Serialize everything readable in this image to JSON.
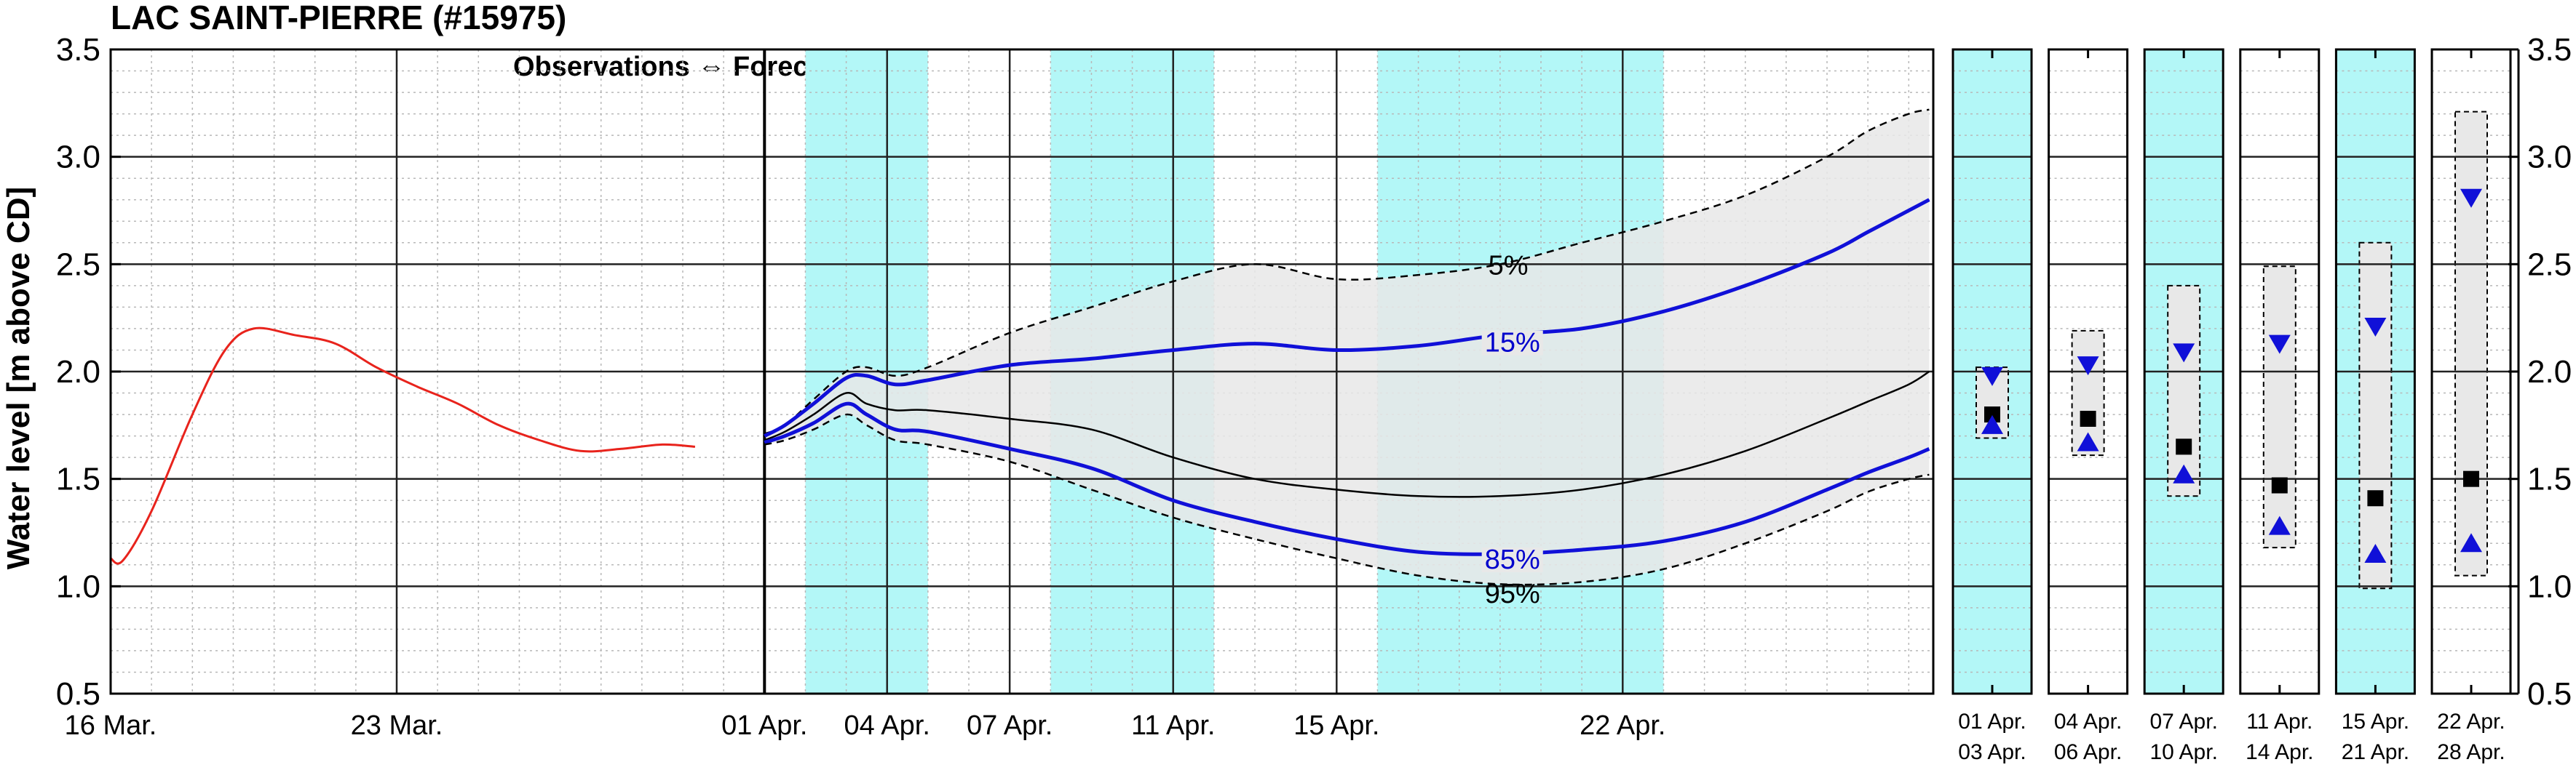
{
  "chart_data": {
    "type": "line",
    "title": "LAC SAINT-PIERRE (#15975)",
    "ylabel": "Water level [m above CD]",
    "ylim": [
      0.5,
      3.5
    ],
    "yticks": [
      "0.5",
      "1.0",
      "1.5",
      "2.0",
      "2.5",
      "3.0",
      "3.5"
    ],
    "grid": true,
    "xticks": [
      {
        "day": 0,
        "label": "16 Mar."
      },
      {
        "day": 7,
        "label": "23 Mar."
      },
      {
        "day": 16,
        "label": "01 Apr."
      },
      {
        "day": 19,
        "label": "04 Apr."
      },
      {
        "day": 22,
        "label": "07 Apr."
      },
      {
        "day": 26,
        "label": "11 Apr."
      },
      {
        "day": 30,
        "label": "15 Apr."
      },
      {
        "day": 37,
        "label": "22 Apr."
      }
    ],
    "annotation": "Observations ⇔ Forecasts",
    "shaded_periods": [
      [
        17,
        20
      ],
      [
        23,
        27
      ],
      [
        31,
        38
      ]
    ],
    "observed": {
      "color": "#e8231c",
      "points": [
        [
          0.0,
          1.13
        ],
        [
          0.3,
          1.12
        ],
        [
          1.0,
          1.35
        ],
        [
          2.0,
          1.8
        ],
        [
          2.8,
          2.1
        ],
        [
          3.5,
          2.2
        ],
        [
          4.5,
          2.17
        ],
        [
          5.5,
          2.13
        ],
        [
          6.5,
          2.02
        ],
        [
          7.5,
          1.93
        ],
        [
          8.5,
          1.85
        ],
        [
          9.5,
          1.75
        ],
        [
          10.5,
          1.68
        ],
        [
          11.5,
          1.63
        ],
        [
          12.5,
          1.64
        ],
        [
          13.5,
          1.66
        ],
        [
          14.3,
          1.65
        ]
      ]
    },
    "forecast_series": [
      {
        "name": "5%",
        "style": "dashed",
        "points": [
          [
            16,
            1.71
          ],
          [
            16.5,
            1.75
          ],
          [
            17.2,
            1.87
          ],
          [
            18.0,
            2.0
          ],
          [
            18.5,
            2.02
          ],
          [
            19.2,
            1.98
          ],
          [
            20,
            2.02
          ],
          [
            22,
            2.18
          ],
          [
            24,
            2.3
          ],
          [
            26,
            2.42
          ],
          [
            28,
            2.5
          ],
          [
            30,
            2.43
          ],
          [
            32,
            2.45
          ],
          [
            34,
            2.5
          ],
          [
            36,
            2.6
          ],
          [
            38,
            2.7
          ],
          [
            40,
            2.82
          ],
          [
            42,
            3.0
          ],
          [
            43,
            3.12
          ],
          [
            44,
            3.2
          ],
          [
            44.5,
            3.22
          ]
        ]
      },
      {
        "name": "15%",
        "style": "blue",
        "points": [
          [
            16,
            1.7
          ],
          [
            16.5,
            1.75
          ],
          [
            17.2,
            1.85
          ],
          [
            18.0,
            1.97
          ],
          [
            18.5,
            1.98
          ],
          [
            19.2,
            1.94
          ],
          [
            20,
            1.96
          ],
          [
            22,
            2.03
          ],
          [
            24,
            2.06
          ],
          [
            26,
            2.1
          ],
          [
            28,
            2.13
          ],
          [
            30,
            2.1
          ],
          [
            32,
            2.12
          ],
          [
            34,
            2.17
          ],
          [
            36,
            2.2
          ],
          [
            38,
            2.28
          ],
          [
            40,
            2.4
          ],
          [
            42,
            2.55
          ],
          [
            43,
            2.65
          ],
          [
            44,
            2.75
          ],
          [
            44.5,
            2.8
          ]
        ]
      },
      {
        "name": "",
        "style": "thin",
        "points": [
          [
            16,
            1.68
          ],
          [
            16.5,
            1.72
          ],
          [
            17.2,
            1.8
          ],
          [
            18.0,
            1.9
          ],
          [
            18.5,
            1.85
          ],
          [
            19.2,
            1.82
          ],
          [
            20,
            1.82
          ],
          [
            22,
            1.78
          ],
          [
            24,
            1.73
          ],
          [
            26,
            1.6
          ],
          [
            28,
            1.5
          ],
          [
            30,
            1.45
          ],
          [
            32,
            1.42
          ],
          [
            34,
            1.42
          ],
          [
            36,
            1.45
          ],
          [
            38,
            1.52
          ],
          [
            40,
            1.63
          ],
          [
            42,
            1.78
          ],
          [
            43,
            1.86
          ],
          [
            44,
            1.94
          ],
          [
            44.5,
            2.0
          ]
        ]
      },
      {
        "name": "85%",
        "style": "blue",
        "points": [
          [
            16,
            1.67
          ],
          [
            16.5,
            1.7
          ],
          [
            17.2,
            1.76
          ],
          [
            18.0,
            1.85
          ],
          [
            18.5,
            1.8
          ],
          [
            19.2,
            1.73
          ],
          [
            20,
            1.72
          ],
          [
            22,
            1.64
          ],
          [
            24,
            1.55
          ],
          [
            26,
            1.4
          ],
          [
            28,
            1.3
          ],
          [
            30,
            1.22
          ],
          [
            32,
            1.16
          ],
          [
            34,
            1.15
          ],
          [
            36,
            1.17
          ],
          [
            38,
            1.21
          ],
          [
            40,
            1.3
          ],
          [
            42,
            1.45
          ],
          [
            43,
            1.53
          ],
          [
            44,
            1.6
          ],
          [
            44.5,
            1.64
          ]
        ]
      },
      {
        "name": "95%",
        "style": "dashed",
        "points": [
          [
            16,
            1.66
          ],
          [
            16.5,
            1.68
          ],
          [
            17.2,
            1.73
          ],
          [
            18.0,
            1.8
          ],
          [
            18.5,
            1.75
          ],
          [
            19.2,
            1.68
          ],
          [
            20,
            1.66
          ],
          [
            22,
            1.58
          ],
          [
            24,
            1.45
          ],
          [
            26,
            1.32
          ],
          [
            28,
            1.22
          ],
          [
            30,
            1.13
          ],
          [
            32,
            1.05
          ],
          [
            34,
            1.01
          ],
          [
            36,
            1.02
          ],
          [
            38,
            1.08
          ],
          [
            40,
            1.2
          ],
          [
            42,
            1.35
          ],
          [
            43,
            1.44
          ],
          [
            44,
            1.5
          ],
          [
            44.5,
            1.52
          ]
        ]
      }
    ],
    "percentile_labels": [
      {
        "text": "5%",
        "day": 34.2,
        "y": 2.5,
        "color": "#000000"
      },
      {
        "text": "15%",
        "day": 34.3,
        "y": 2.14,
        "color": "#0000cc"
      },
      {
        "text": "85%",
        "day": 34.3,
        "y": 1.13,
        "color": "#0000cc"
      },
      {
        "text": "95%",
        "day": 34.3,
        "y": 0.97,
        "color": "#000000"
      }
    ],
    "period_panels": [
      {
        "line1": "01 Apr.",
        "line2": "03 Apr.",
        "cyan": true,
        "low": 1.69,
        "high": 2.02,
        "median": 1.8,
        "p15": 1.98,
        "p85": 1.75
      },
      {
        "line1": "04 Apr.",
        "line2": "06 Apr.",
        "cyan": false,
        "low": 1.61,
        "high": 2.19,
        "median": 1.78,
        "p15": 2.03,
        "p85": 1.67
      },
      {
        "line1": "07 Apr.",
        "line2": "10 Apr.",
        "cyan": true,
        "low": 1.42,
        "high": 2.4,
        "median": 1.65,
        "p15": 2.09,
        "p85": 1.52
      },
      {
        "line1": "11 Apr.",
        "line2": "14 Apr.",
        "cyan": false,
        "low": 1.18,
        "high": 2.49,
        "median": 1.47,
        "p15": 2.13,
        "p85": 1.28
      },
      {
        "line1": "15 Apr.",
        "line2": "21 Apr.",
        "cyan": true,
        "low": 0.99,
        "high": 2.6,
        "median": 1.41,
        "p15": 2.21,
        "p85": 1.15
      },
      {
        "line1": "22 Apr.",
        "line2": "28 Apr.",
        "cyan": false,
        "low": 1.05,
        "high": 3.21,
        "median": 1.5,
        "p15": 2.81,
        "p85": 1.2
      }
    ],
    "colors": {
      "shade": "#b3f7f7",
      "band": "#e8e8e8",
      "blue": "#1010d8",
      "black": "#000000",
      "red": "#e8231c"
    }
  }
}
